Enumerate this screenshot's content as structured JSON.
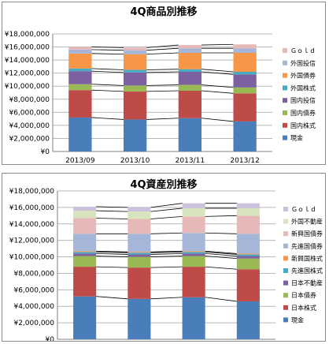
{
  "chart_data": [
    {
      "type": "bar",
      "stacked": true,
      "title": "4Q商品別推移",
      "categories": [
        "2013/09",
        "2013/10",
        "2013/11",
        "2013/12"
      ],
      "ylim": [
        0,
        18000000
      ],
      "yticks": [
        "¥0",
        "¥2,000,000",
        "¥4,000,000",
        "¥6,000,000",
        "¥8,000,000",
        "¥10,000,000",
        "¥12,000,000",
        "¥14,000,000",
        "¥16,000,000",
        "¥18,000,000"
      ],
      "grid": true,
      "legend_position": "right",
      "series": [
        {
          "name": "現金",
          "color": "#4a7ebb",
          "values": [
            5200000,
            4900000,
            5100000,
            4600000
          ]
        },
        {
          "name": "国内株式",
          "color": "#be4b48",
          "values": [
            4200000,
            4300000,
            4200000,
            4300000
          ]
        },
        {
          "name": "国内債券",
          "color": "#98b954",
          "values": [
            900000,
            900000,
            900000,
            900000
          ]
        },
        {
          "name": "国内投信",
          "color": "#7d60a0",
          "values": [
            2000000,
            2000000,
            2000000,
            2000000
          ]
        },
        {
          "name": "外国株式",
          "color": "#46aac5",
          "values": [
            400000,
            400000,
            400000,
            400000
          ]
        },
        {
          "name": "外国債券",
          "color": "#f79646",
          "values": [
            2300000,
            2400000,
            2500000,
            2900000
          ]
        },
        {
          "name": "外国投信",
          "color": "#a5b6d9",
          "values": [
            600000,
            600000,
            700000,
            700000
          ]
        },
        {
          "name": "Ｇｏｌｄ",
          "color": "#e6b9b8",
          "values": [
            400000,
            400000,
            500000,
            600000
          ]
        }
      ]
    },
    {
      "type": "bar",
      "stacked": true,
      "title": "4Q資産別推移",
      "categories": [
        "2013/09",
        "2013/10",
        "2013/11",
        "2013/12"
      ],
      "ylim": [
        0,
        18000000
      ],
      "yticks": [
        "¥0",
        "¥2,000,000",
        "¥4,000,000",
        "¥6,000,000",
        "¥8,000,000",
        "¥10,000,000",
        "¥12,000,000",
        "¥14,000,000",
        "¥16,000,000",
        "¥18,000,000"
      ],
      "grid": true,
      "legend_position": "right",
      "series": [
        {
          "name": "現金",
          "color": "#4a7ebb",
          "values": [
            5200000,
            4900000,
            5100000,
            4600000
          ]
        },
        {
          "name": "日本株式",
          "color": "#be4b48",
          "values": [
            3600000,
            3800000,
            3700000,
            3900000
          ]
        },
        {
          "name": "日本債券",
          "color": "#98b954",
          "values": [
            1300000,
            1300000,
            1300000,
            1300000
          ]
        },
        {
          "name": "日本不動産",
          "color": "#7d60a0",
          "values": [
            300000,
            300000,
            300000,
            300000
          ]
        },
        {
          "name": "先進国株式",
          "color": "#46aac5",
          "values": [
            200000,
            200000,
            200000,
            200000
          ]
        },
        {
          "name": "新興国株式",
          "color": "#f79646",
          "values": [
            100000,
            100000,
            100000,
            100000
          ]
        },
        {
          "name": "先進国債券",
          "color": "#a5b6d9",
          "values": [
            2100000,
            2200000,
            2200000,
            2400000
          ]
        },
        {
          "name": "新興国債券",
          "color": "#e6b9b8",
          "values": [
            1900000,
            1800000,
            2000000,
            2200000
          ]
        },
        {
          "name": "外国不動産",
          "color": "#d7e4bd",
          "values": [
            900000,
            900000,
            1000000,
            900000
          ]
        },
        {
          "name": "Ｇｏｌｄ",
          "color": "#ccc1da",
          "values": [
            500000,
            500000,
            600000,
            600000
          ]
        }
      ]
    }
  ]
}
